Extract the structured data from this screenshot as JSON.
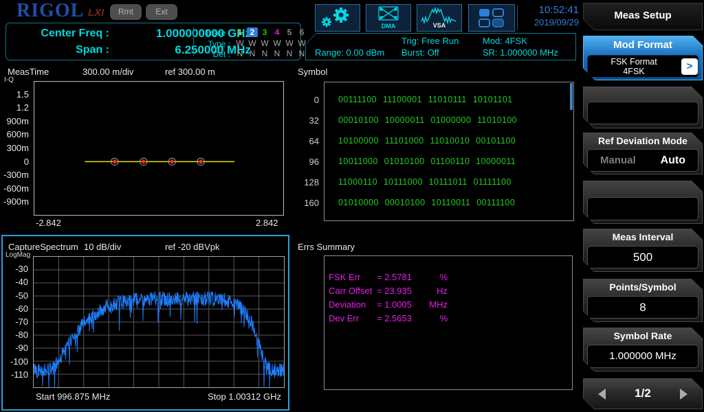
{
  "header": {
    "logo": "RIGOL",
    "lxi": "LXI",
    "rmt": "Rmt",
    "ext": "Ext",
    "time": "10:52:41",
    "date": "2019/09/29",
    "icons": {
      "settings_gear": "gear-icon",
      "dma_label": "DMA",
      "vsa_label": "VSA",
      "windows_grid": "windows-grid-icon"
    },
    "accent_blue": "#2e7fd9",
    "icon_cyan": "#00dbe8"
  },
  "status": {
    "center_freq_label": "Center Freq :",
    "center_freq": "1.000000000 GHz",
    "span_label": "Span :",
    "span": "6.250000 MHz",
    "trace": {
      "label": "Trace :",
      "items": [
        {
          "n": "1",
          "color": "#d4d400"
        },
        {
          "n": "2",
          "color": "#ffffff",
          "bg": "#2d7fd9"
        },
        {
          "n": "3",
          "color": "#18c818"
        },
        {
          "n": "4",
          "color": "#e018e0"
        },
        {
          "n": "5",
          "color": "#8a8a8a"
        },
        {
          "n": "6",
          "color": "#8a8a8a"
        }
      ]
    },
    "type": {
      "label": "Type :",
      "values": [
        "W",
        "W",
        "W",
        "W",
        "W",
        "W"
      ],
      "color": "#a8a8a8"
    },
    "det": {
      "label": "Det :",
      "values": [
        "N",
        "N",
        "N",
        "N",
        "N",
        "N"
      ],
      "color": "#a8a8a8"
    },
    "range": "Range: 0.00 dBm",
    "trig": "Trig: Free Run",
    "burst": "Burst: Off",
    "mod": "Mod: 4FSK",
    "sr": "SR: 1.000000 MHz"
  },
  "symbol": {
    "title": "Symbol",
    "rows": [
      {
        "index": "0",
        "bits": "00111100 11100001 11010111 10101101"
      },
      {
        "index": "32",
        "bits": "00010100 10000011 01000000 11010100"
      },
      {
        "index": "64",
        "bits": "10100000 11101000 11010010 00101100"
      },
      {
        "index": "96",
        "bits": "10011000 01010100 01100110 10000011"
      },
      {
        "index": "128",
        "bits": "11000110 10111000 10111011 01111100"
      },
      {
        "index": "160",
        "bits": "01010000 00010100 10110011 00111100"
      }
    ],
    "text_color": "#1fcf1f"
  },
  "errs": {
    "title": "Errs Summary",
    "rows": [
      {
        "name": "FSK Err",
        "value": "= 2.5781",
        "unit": "%"
      },
      {
        "name": "Carr Offset",
        "value": "= 23.935",
        "unit": "Hz"
      },
      {
        "name": "Deviation",
        "value": "= 1.0005",
        "unit": "MHz"
      },
      {
        "name": "Dev Err",
        "value": "= 2.5653",
        "unit": "%"
      }
    ],
    "text_color": "#e81ee8"
  },
  "sidebar": {
    "menu_title": "Meas Setup",
    "mod_format": {
      "label": "Mod Format",
      "value_line1": "FSK Format",
      "value_line2": "4FSK",
      "arrow": ">"
    },
    "ref_deviation_mode": {
      "label": "Ref Deviation Mode",
      "option_manual": "Manual",
      "option_auto": "Auto",
      "selected": "Auto"
    },
    "meas_interval": {
      "label": "Meas Interval",
      "value": "500"
    },
    "points_per_symbol": {
      "label": "Points/Symbol",
      "value": "8"
    },
    "symbol_rate": {
      "label": "Symbol Rate",
      "value": "1.000000 MHz"
    },
    "pager": {
      "page": "1/2"
    }
  },
  "chart_data": [
    {
      "id": "meastime",
      "type": "line",
      "title": "MeasTime",
      "scale_label": "300.00 m/div",
      "ref_label": "ref 300.00 m",
      "format": "I-Q",
      "xlim": [
        -2.842,
        2.842
      ],
      "ylim": [
        -1.2,
        1.8
      ],
      "y_ticks": [
        "1.5",
        "1.2",
        "900m",
        "600m",
        "300m",
        "0",
        "-300m",
        "-600m",
        "-900m"
      ],
      "x_tick_labels": [
        "-2.842",
        "2.842"
      ],
      "grid": false,
      "series": [
        {
          "name": "iq-trace",
          "color": "#e8e800",
          "y_value": 0,
          "x_start": -1.69,
          "x_end": 1.73
        }
      ],
      "markers": {
        "color": "#ff2a2a",
        "ring_color": "#9a9a9a",
        "y": 0,
        "x": [
          -1.01,
          -0.35,
          0.3,
          0.96
        ]
      }
    },
    {
      "id": "spectrum",
      "type": "line",
      "title": "CaptureSpectrum",
      "scale_label": "10 dB/div",
      "ref_label": "ref -20 dBVpk",
      "format": "LogMag",
      "ylim": [
        -120,
        -20
      ],
      "y_ticks": [
        "-30",
        "-40",
        "-50",
        "-60",
        "-70",
        "-80",
        "-90",
        "-100",
        "-110"
      ],
      "x_start_label": "Start 996.875 MHz",
      "x_stop_label": "Stop 1.00312 GHz",
      "grid": true,
      "divisions": [
        10,
        10
      ],
      "grid_color": "#5a5a5a",
      "trace_color": "#1e7fff",
      "envelope_db": [
        [
          0.0,
          -106
        ],
        [
          0.06,
          -107
        ],
        [
          0.09,
          -103
        ],
        [
          0.11,
          -96
        ],
        [
          0.13,
          -90
        ],
        [
          0.16,
          -80
        ],
        [
          0.19,
          -73
        ],
        [
          0.22,
          -68
        ],
        [
          0.26,
          -62
        ],
        [
          0.3,
          -57
        ],
        [
          0.34,
          -55
        ],
        [
          0.4,
          -53
        ],
        [
          0.5,
          -52
        ],
        [
          0.62,
          -52
        ],
        [
          0.7,
          -52
        ],
        [
          0.76,
          -53
        ],
        [
          0.8,
          -55
        ],
        [
          0.83,
          -59
        ],
        [
          0.855,
          -65
        ],
        [
          0.88,
          -75
        ],
        [
          0.9,
          -87
        ],
        [
          0.915,
          -97
        ],
        [
          0.93,
          -104
        ],
        [
          0.95,
          -107
        ],
        [
          1.0,
          -106
        ]
      ],
      "noise_db": 11,
      "spike_db": 18,
      "seed": 42
    }
  ]
}
